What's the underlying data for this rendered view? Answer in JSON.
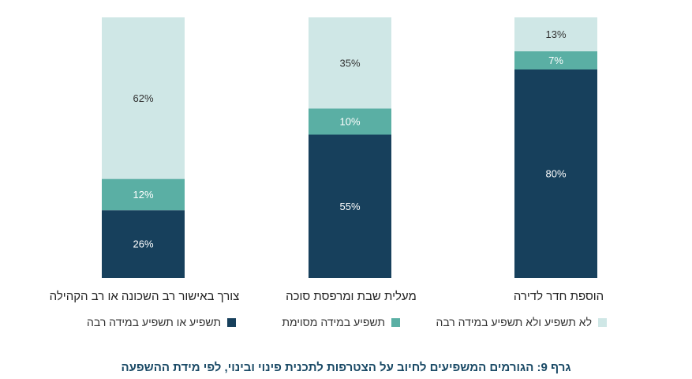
{
  "chart_data": {
    "type": "bar",
    "stacked": true,
    "title": "גרף 9: הגורמים המשפיעים לחיוב על הצטרפות לתכנית פינוי ובינוי, לפי מידת ההשפעה",
    "categories": [
      "צורך באישור רב השכונה או רב הקהילה",
      "מעלית שבת ומרפסת סוכה",
      "הוספת חדר לדירה"
    ],
    "series": [
      {
        "name": "תשפיע או תשפיע במידה רבה",
        "color": "#17405c",
        "text_color": "#ffffff",
        "values": [
          26,
          55,
          80
        ]
      },
      {
        "name": "תשפיע במידה מסוימת",
        "color": "#5aafa4",
        "text_color": "#ffffff",
        "values": [
          12,
          10,
          7
        ]
      },
      {
        "name": "לא תשפיע ולא תשפיע במידה רבה",
        "color": "#cfe7e6",
        "text_color": "#333333",
        "values": [
          62,
          35,
          13
        ]
      }
    ],
    "value_suffix": "%",
    "ylim": [
      0,
      100
    ],
    "legend_position": "bottom"
  }
}
